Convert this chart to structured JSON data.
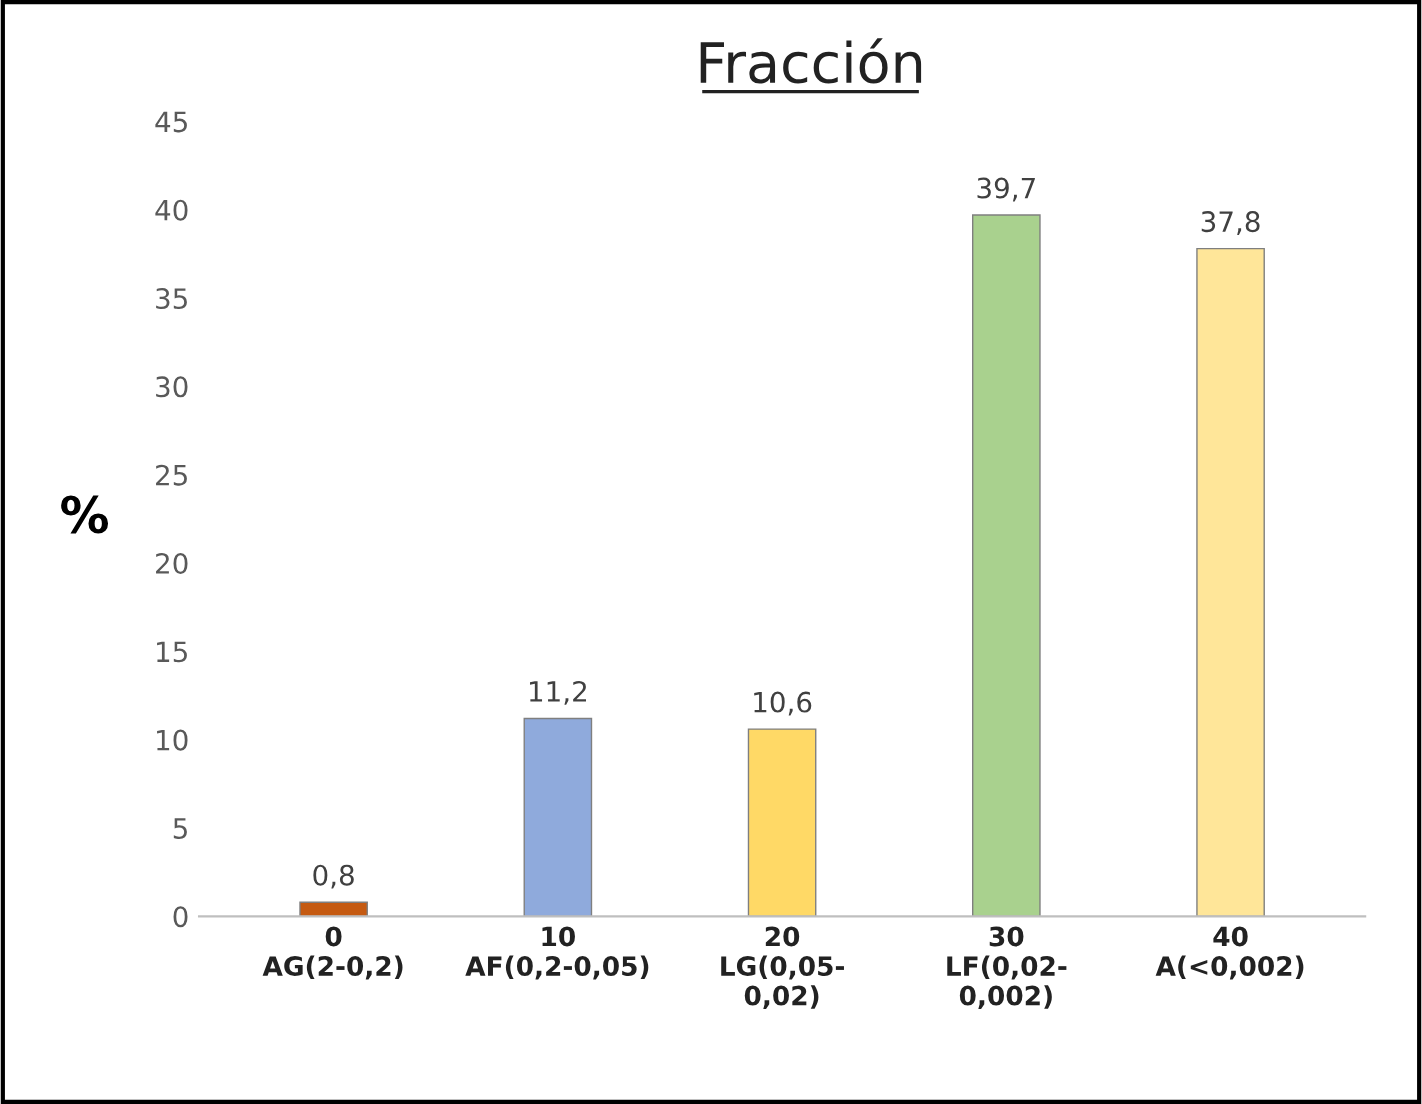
{
  "chart_data": {
    "type": "bar",
    "title": "Fracción",
    "ylabel": "%",
    "categories": [
      "0\nAG(2-0,2)",
      "10\nAF(0,2-0,05)",
      "20\nLG(0,05-\n0,02)",
      "30\nLF(0,02-\n0,002)",
      "40\nA(<0,002)"
    ],
    "values": [
      0.8,
      11.2,
      10.6,
      39.7,
      37.8
    ],
    "colors": [
      "#c55a11",
      "#8faadc",
      "#ffd966",
      "#a9d18e",
      "#ffe699"
    ],
    "value_labels": [
      "0,8",
      "11,2",
      "10,6",
      "39,7",
      "37,8"
    ],
    "ylim": [
      0,
      45
    ],
    "yticks": [
      0,
      5,
      10,
      15,
      20,
      25,
      30,
      35,
      40,
      45
    ],
    "grid": false,
    "legend": false
  }
}
